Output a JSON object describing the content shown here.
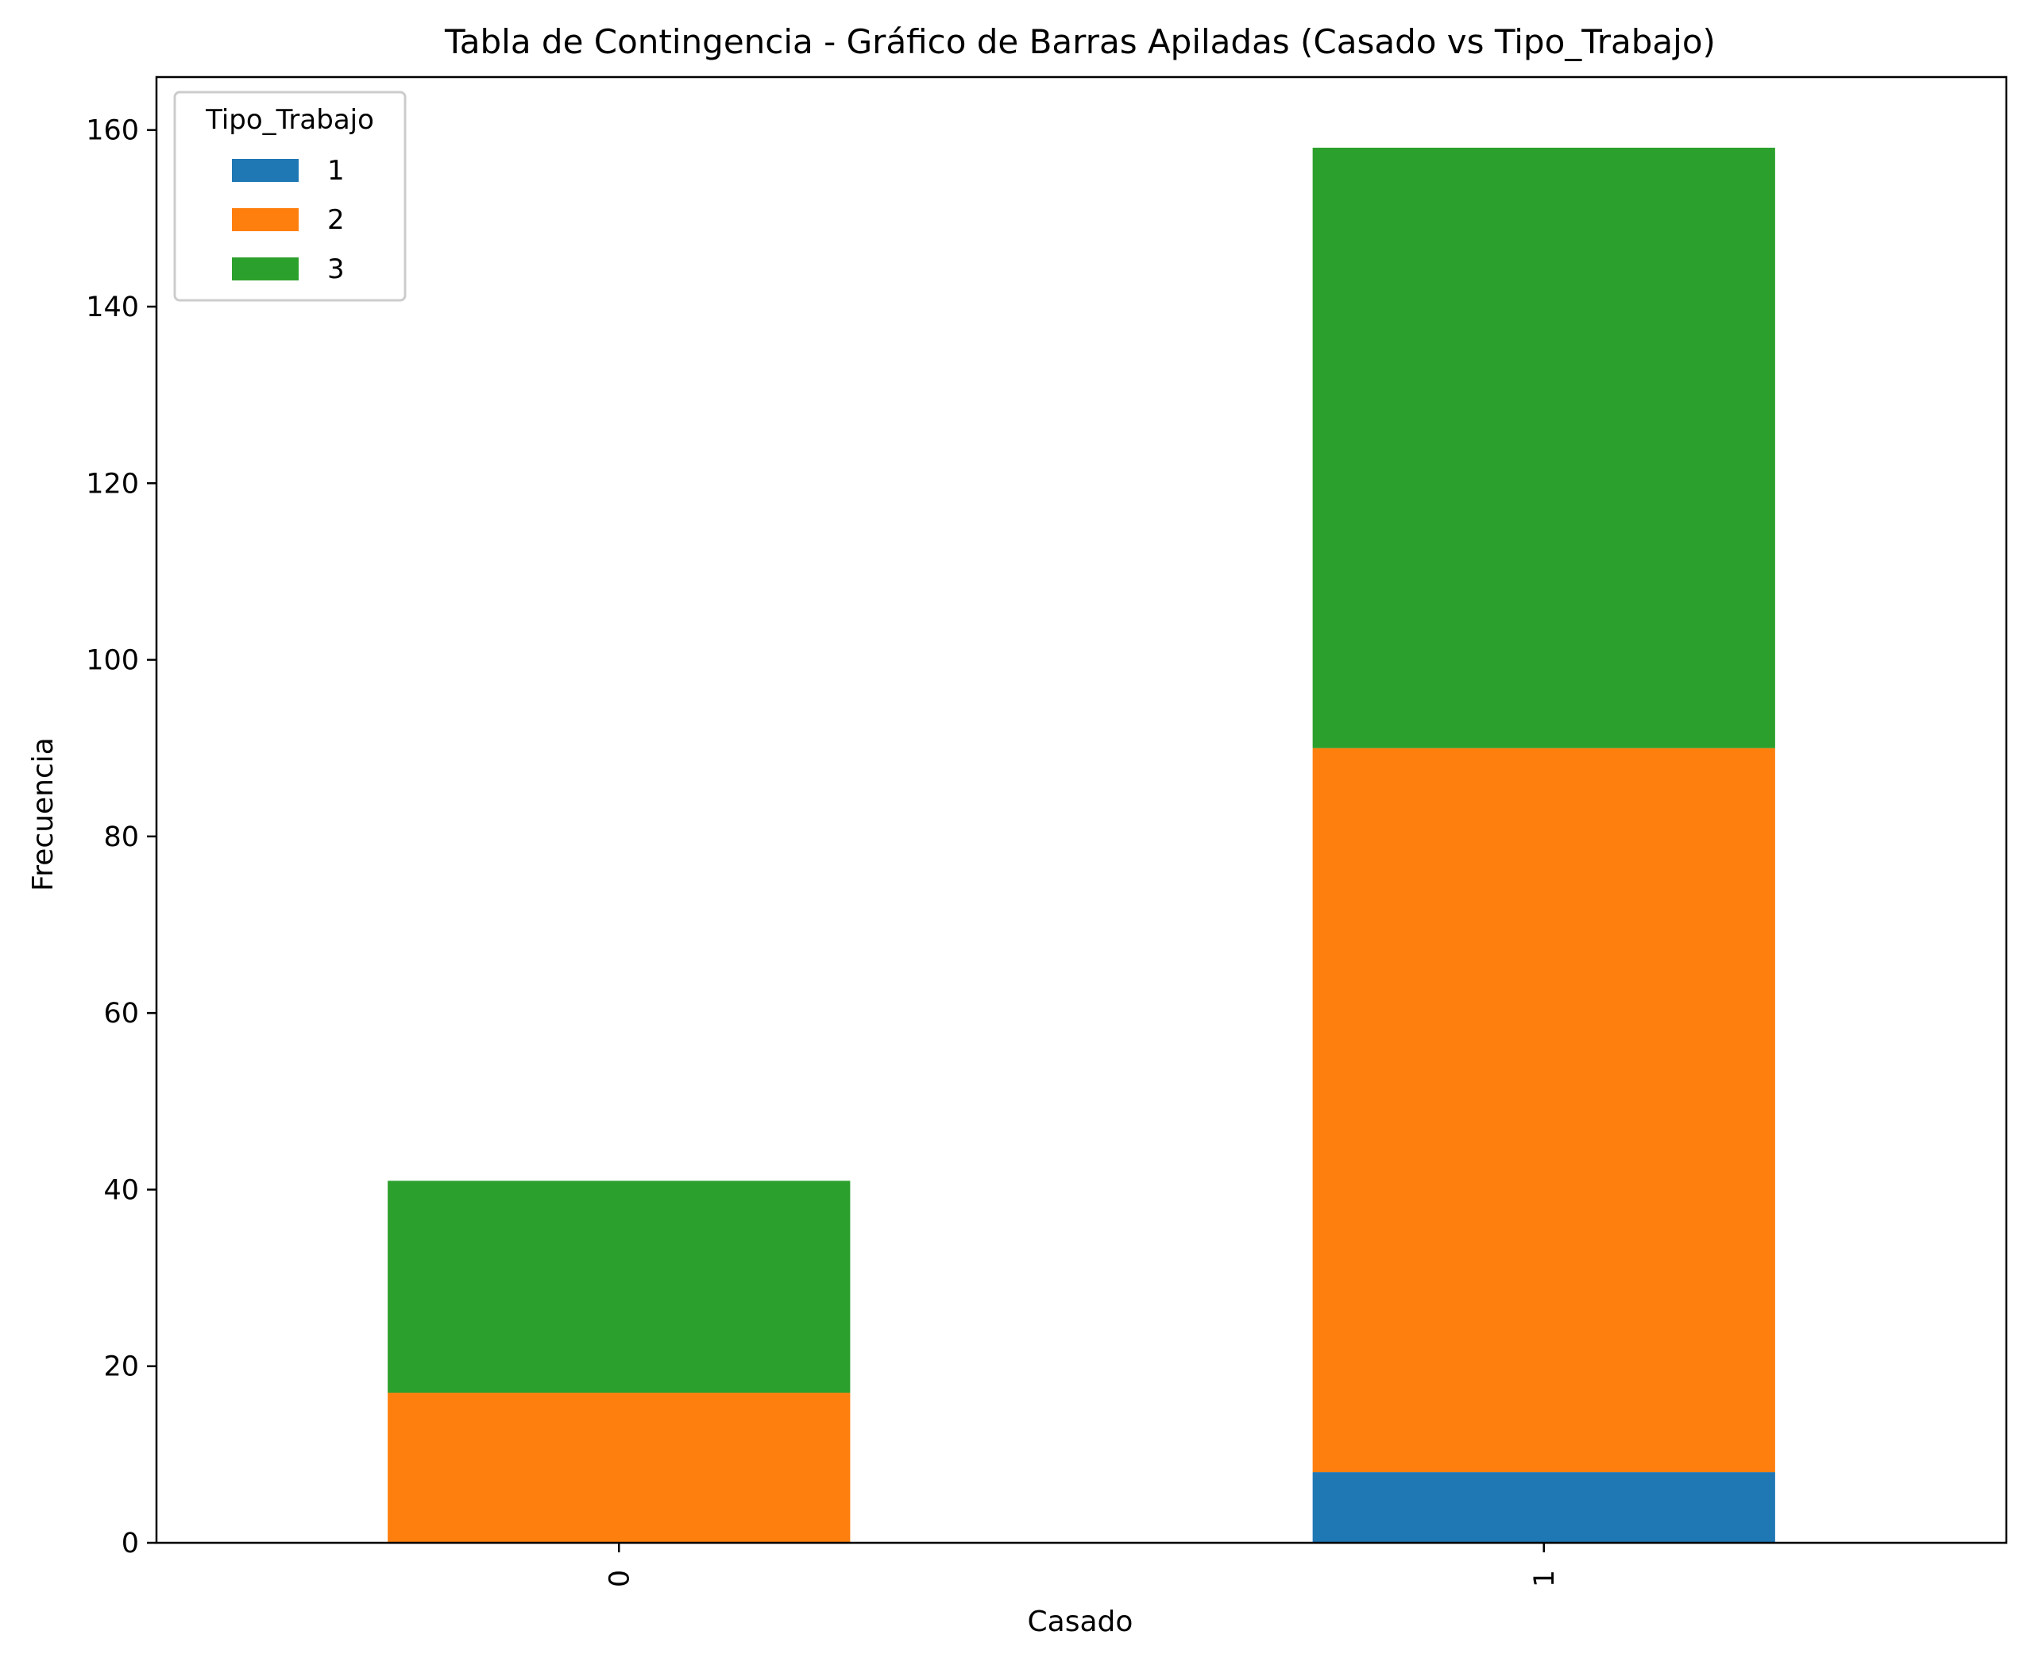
{
  "chart_data": {
    "type": "bar",
    "stacked": true,
    "title": "Tabla de Contingencia - Gráfico de Barras Apiladas (Casado vs Tipo_Trabajo)",
    "xlabel": "Casado",
    "ylabel": "Frecuencia",
    "categories": [
      "0",
      "1"
    ],
    "series": [
      {
        "name": "1",
        "values": [
          0,
          8
        ],
        "color": "#1f77b4"
      },
      {
        "name": "2",
        "values": [
          17,
          82
        ],
        "color": "#ff7f0e"
      },
      {
        "name": "3",
        "values": [
          24,
          68
        ],
        "color": "#2ca02c"
      }
    ],
    "ylim": [
      0,
      166
    ],
    "yticks": [
      0,
      20,
      40,
      60,
      80,
      100,
      120,
      140,
      160
    ],
    "x_tick_rotation": "vertical",
    "grid": false,
    "legend": {
      "title": "Tipo_Trabajo",
      "placement": "upper-left"
    }
  }
}
